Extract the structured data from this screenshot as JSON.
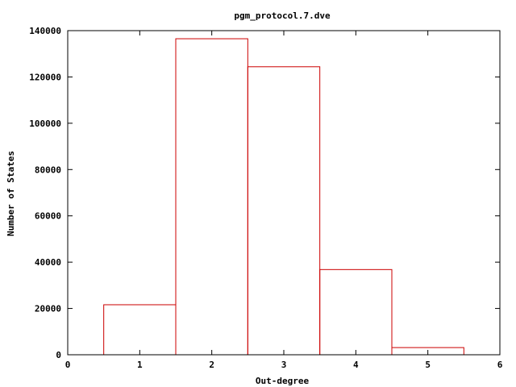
{
  "chart_data": {
    "type": "bar",
    "title": "pgm_protocol.7.dve",
    "xlabel": "Out-degree",
    "ylabel": "Number of States",
    "xlim": [
      0,
      6
    ],
    "ylim": [
      0,
      140000
    ],
    "xticks": [
      0,
      1,
      2,
      3,
      4,
      5,
      6
    ],
    "yticks": [
      0,
      20000,
      40000,
      60000,
      80000,
      100000,
      120000,
      140000
    ],
    "grid": false,
    "bar_width": 1,
    "bar_color": "#cc0000",
    "categories": [
      1,
      2,
      3,
      4,
      5
    ],
    "values": [
      21600,
      136500,
      124400,
      36800,
      3100
    ]
  }
}
